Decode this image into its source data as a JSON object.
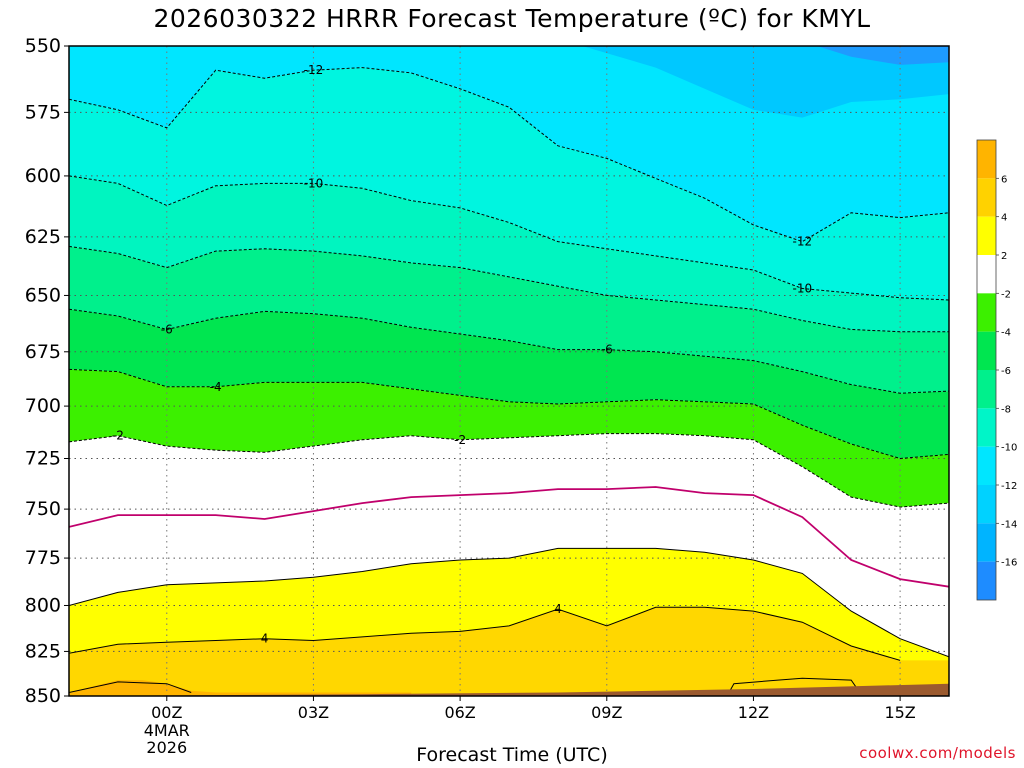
{
  "chart_data": {
    "type": "heatmap",
    "title": "2026030322 HRRR Forecast Temperature (ºC) for KMYL",
    "xlabel": "Forecast Time (UTC)",
    "ylabel": "",
    "ylim": [
      850,
      550
    ],
    "y_scale": "pressure (inverted)",
    "y_ticks": [
      550,
      575,
      600,
      625,
      650,
      675,
      700,
      725,
      750,
      775,
      800,
      825,
      850
    ],
    "x_ticks": [
      {
        "hour": 0,
        "label": "00Z",
        "sub": [
          "4MAR",
          "2026"
        ]
      },
      {
        "hour": 3,
        "label": "03Z"
      },
      {
        "hour": 6,
        "label": "06Z"
      },
      {
        "hour": 9,
        "label": "09Z"
      },
      {
        "hour": 12,
        "label": "12Z"
      },
      {
        "hour": 15,
        "label": "15Z"
      }
    ],
    "xlim": [
      -2,
      16
    ],
    "grid": true,
    "colorbar": {
      "levels": [
        -18,
        -16,
        -14,
        -12,
        -10,
        -8,
        -6,
        -4,
        -2,
        2,
        4,
        6,
        8
      ],
      "labels": [
        "-16",
        "-14",
        "-12",
        "-10",
        "-8",
        "-6",
        "-4",
        "-2",
        "2",
        "4",
        "6"
      ],
      "colors": [
        "#1e8cff",
        "#00b4ff",
        "#00d2ff",
        "#00e6ff",
        "#00f5c8",
        "#00f08c",
        "#00e650",
        "#3cf000",
        "#ffffff",
        "#ffff00",
        "#ffd200",
        "#ffb400"
      ]
    },
    "contours": [
      {
        "level": -12,
        "label": "-12",
        "style": "dashed",
        "points": [
          [
            -2,
            570
          ],
          [
            -1,
            574
          ],
          [
            0,
            581
          ],
          [
            1,
            559
          ],
          [
            2,
            562
          ],
          [
            3,
            559
          ],
          [
            4,
            558
          ],
          [
            5,
            560
          ],
          [
            6,
            566
          ],
          [
            7,
            573
          ],
          [
            8,
            588
          ],
          [
            9,
            593
          ],
          [
            10,
            601
          ],
          [
            11,
            609
          ],
          [
            12,
            620
          ],
          [
            13,
            627
          ],
          [
            14,
            615
          ],
          [
            15,
            617
          ],
          [
            16,
            615
          ]
        ]
      },
      {
        "level": -10,
        "label": "-10",
        "style": "dashed",
        "points": [
          [
            -2,
            600
          ],
          [
            -1,
            603
          ],
          [
            0,
            612
          ],
          [
            1,
            604
          ],
          [
            2,
            603
          ],
          [
            3,
            603
          ],
          [
            4,
            605
          ],
          [
            5,
            610
          ],
          [
            6,
            613
          ],
          [
            7,
            619
          ],
          [
            8,
            627
          ],
          [
            9,
            630
          ],
          [
            10,
            633
          ],
          [
            11,
            636
          ],
          [
            12,
            639
          ],
          [
            13,
            647
          ],
          [
            14,
            649
          ],
          [
            15,
            651
          ],
          [
            16,
            652
          ]
        ]
      },
      {
        "level": -8,
        "label": "",
        "style": "dashed",
        "points": [
          [
            -2,
            629
          ],
          [
            -1,
            632
          ],
          [
            0,
            638
          ],
          [
            1,
            631
          ],
          [
            2,
            630
          ],
          [
            3,
            631
          ],
          [
            4,
            633
          ],
          [
            5,
            636
          ],
          [
            6,
            638
          ],
          [
            7,
            642
          ],
          [
            8,
            646
          ],
          [
            9,
            650
          ],
          [
            10,
            652
          ],
          [
            11,
            654
          ],
          [
            12,
            656
          ],
          [
            13,
            661
          ],
          [
            14,
            665
          ],
          [
            15,
            666
          ],
          [
            16,
            666
          ]
        ]
      },
      {
        "level": -6,
        "label": "-6",
        "style": "dashed",
        "points": [
          [
            -2,
            656
          ],
          [
            -1,
            659
          ],
          [
            0,
            665
          ],
          [
            1,
            660
          ],
          [
            2,
            657
          ],
          [
            3,
            658
          ],
          [
            4,
            660
          ],
          [
            5,
            664
          ],
          [
            6,
            667
          ],
          [
            7,
            670
          ],
          [
            8,
            674
          ],
          [
            9,
            674
          ],
          [
            10,
            675
          ],
          [
            11,
            677
          ],
          [
            12,
            679
          ],
          [
            13,
            684
          ],
          [
            14,
            690
          ],
          [
            15,
            694
          ],
          [
            16,
            693
          ]
        ]
      },
      {
        "level": -4,
        "label": "-4",
        "style": "dashed",
        "points": [
          [
            -2,
            683
          ],
          [
            -1,
            684
          ],
          [
            0,
            691
          ],
          [
            1,
            691
          ],
          [
            2,
            689
          ],
          [
            3,
            689
          ],
          [
            4,
            689
          ],
          [
            5,
            692
          ],
          [
            6,
            695
          ],
          [
            7,
            698
          ],
          [
            8,
            699
          ],
          [
            9,
            698
          ],
          [
            10,
            697
          ],
          [
            11,
            698
          ],
          [
            12,
            699
          ],
          [
            13,
            709
          ],
          [
            14,
            718
          ],
          [
            15,
            725
          ],
          [
            16,
            723
          ]
        ]
      },
      {
        "level": -2,
        "label": "-2",
        "style": "dashed",
        "points": [
          [
            -2,
            717
          ],
          [
            -1,
            714
          ],
          [
            0,
            719
          ],
          [
            1,
            721
          ],
          [
            2,
            722
          ],
          [
            3,
            719
          ],
          [
            4,
            716
          ],
          [
            5,
            714
          ],
          [
            6,
            716
          ],
          [
            7,
            715
          ],
          [
            8,
            714
          ],
          [
            9,
            713
          ],
          [
            10,
            713
          ],
          [
            11,
            714
          ],
          [
            12,
            716
          ],
          [
            13,
            729
          ],
          [
            14,
            744
          ],
          [
            15,
            749
          ],
          [
            16,
            747
          ]
        ]
      },
      {
        "level": 0,
        "label": "",
        "style": "solid-magenta",
        "points": [
          [
            -2,
            759
          ],
          [
            -1,
            753
          ],
          [
            0,
            753
          ],
          [
            1,
            753
          ],
          [
            2,
            755
          ],
          [
            3,
            751
          ],
          [
            4,
            747
          ],
          [
            5,
            744
          ],
          [
            6,
            743
          ],
          [
            7,
            742
          ],
          [
            8,
            740
          ],
          [
            9,
            740
          ],
          [
            10,
            739
          ],
          [
            11,
            742
          ],
          [
            12,
            743
          ],
          [
            13,
            754
          ],
          [
            14,
            776
          ],
          [
            15,
            786
          ],
          [
            16,
            790
          ]
        ]
      },
      {
        "level": 2,
        "label": "",
        "style": "solid",
        "points": [
          [
            -2,
            800
          ],
          [
            -1,
            793
          ],
          [
            0,
            789
          ],
          [
            1,
            788
          ],
          [
            2,
            787
          ],
          [
            3,
            785
          ],
          [
            4,
            782
          ],
          [
            5,
            778
          ],
          [
            6,
            776
          ],
          [
            7,
            775
          ],
          [
            8,
            770
          ],
          [
            9,
            770
          ],
          [
            10,
            770
          ],
          [
            11,
            772
          ],
          [
            12,
            776
          ],
          [
            13,
            783
          ],
          [
            14,
            803
          ],
          [
            15,
            818
          ],
          [
            16,
            828
          ]
        ]
      },
      {
        "level": 4,
        "label": "4",
        "style": "solid",
        "points": [
          [
            -2,
            826
          ],
          [
            -1,
            821
          ],
          [
            0,
            820
          ],
          [
            1,
            819
          ],
          [
            2,
            818
          ],
          [
            3,
            819
          ],
          [
            4,
            817
          ],
          [
            5,
            815
          ],
          [
            6,
            814
          ],
          [
            7,
            811
          ],
          [
            8,
            802
          ],
          [
            9,
            811
          ],
          [
            10,
            801
          ],
          [
            11,
            801
          ],
          [
            12,
            803
          ],
          [
            13,
            809
          ],
          [
            14,
            822
          ],
          [
            15,
            830
          ]
        ]
      }
    ],
    "terrain": {
      "color": "#9b5a2f"
    }
  },
  "colors": {
    "frame": "#000000",
    "grid": "#888888",
    "zero_line": "#c0006c",
    "credit": "#e0142a"
  },
  "credit": "coolwx.com/models"
}
